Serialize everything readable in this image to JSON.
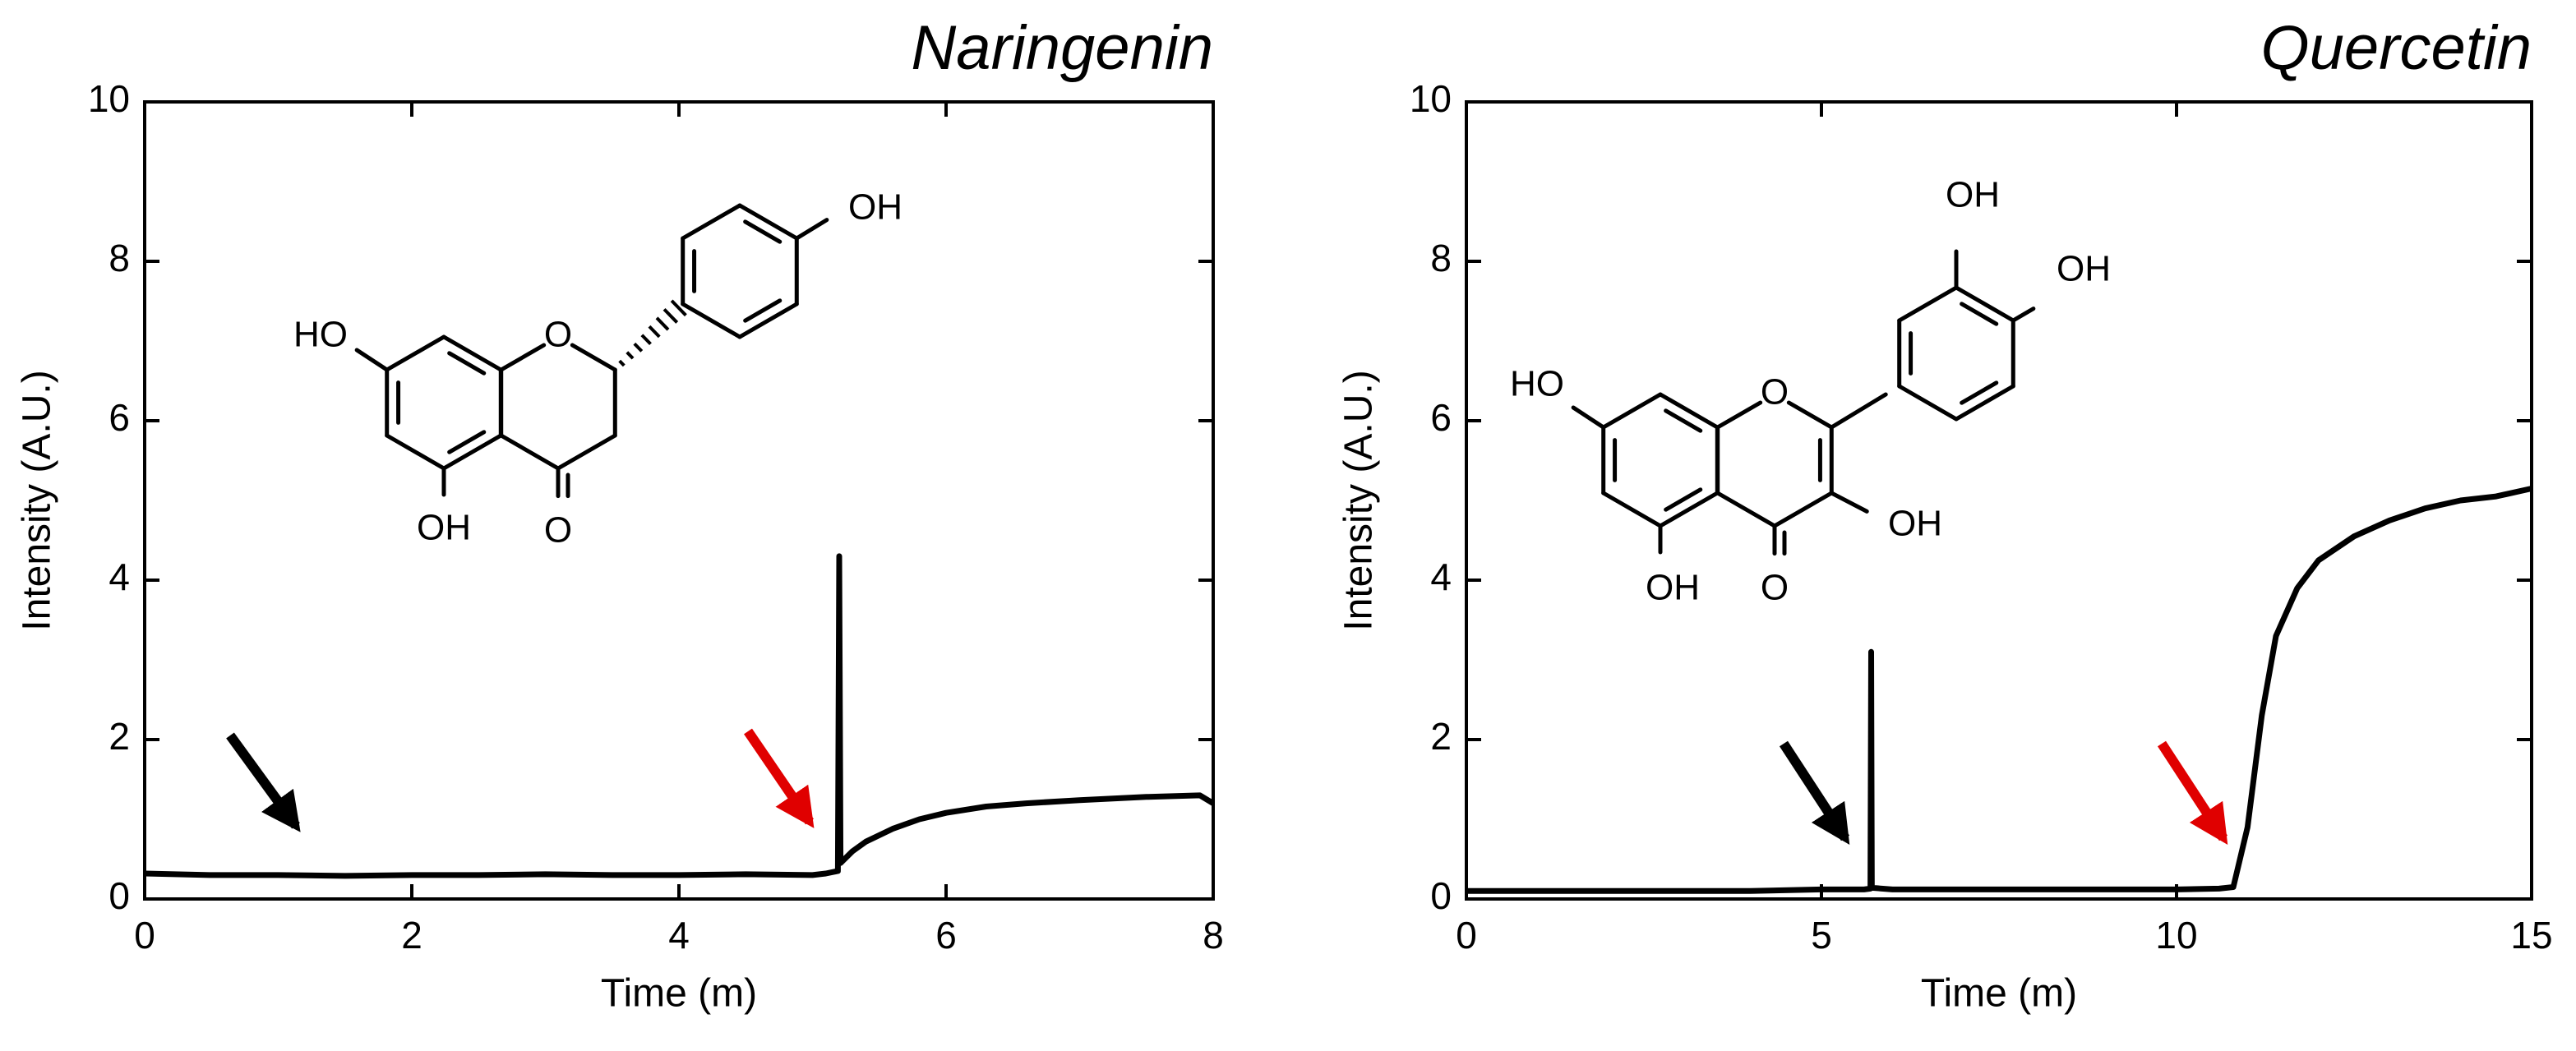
{
  "chart_data": [
    {
      "type": "line",
      "title": "Naringenin",
      "xlabel": "Time (m)",
      "ylabel": "Intensity (A.U.)",
      "x": [
        0,
        0.5,
        1,
        1.5,
        2,
        2.5,
        3,
        3.5,
        4,
        4.5,
        5.0,
        5.1,
        5.19,
        5.2,
        5.21,
        5.3,
        5.4,
        5.6,
        5.8,
        6,
        6.3,
        6.6,
        7,
        7.5,
        7.9,
        8
      ],
      "values": [
        0.32,
        0.3,
        0.3,
        0.29,
        0.3,
        0.3,
        0.31,
        0.3,
        0.3,
        0.31,
        0.3,
        0.32,
        0.35,
        4.3,
        0.45,
        0.6,
        0.72,
        0.88,
        1.0,
        1.08,
        1.16,
        1.2,
        1.24,
        1.28,
        1.3,
        1.2
      ],
      "color": "#000000",
      "xlim": [
        0,
        8
      ],
      "ylim": [
        0,
        10
      ],
      "xticks": [
        0,
        2,
        4,
        6,
        8
      ],
      "yticks": [
        0,
        2,
        4,
        6,
        8,
        10
      ],
      "structure_labels": [
        "HO",
        "O",
        "OH",
        "OH",
        "O"
      ]
    },
    {
      "type": "line",
      "title": "Quercetin",
      "xlabel": "Time (m)",
      "ylabel": "Intensity (A.U.)",
      "x": [
        0,
        1,
        2,
        3,
        4,
        5,
        5.6,
        5.69,
        5.7,
        5.71,
        6,
        7,
        8,
        9,
        10,
        10.6,
        10.8,
        11,
        11.2,
        11.4,
        11.7,
        12,
        12.5,
        13,
        13.5,
        14,
        14.5,
        15
      ],
      "values": [
        0.1,
        0.1,
        0.1,
        0.1,
        0.1,
        0.12,
        0.12,
        0.13,
        3.1,
        0.14,
        0.12,
        0.12,
        0.12,
        0.12,
        0.12,
        0.13,
        0.15,
        0.9,
        2.3,
        3.3,
        3.9,
        4.25,
        4.55,
        4.75,
        4.9,
        5.0,
        5.05,
        5.15
      ],
      "color": "#000000",
      "xlim": [
        0,
        15
      ],
      "ylim": [
        0,
        10
      ],
      "xticks": [
        0,
        5,
        10,
        15
      ],
      "yticks": [
        0,
        2,
        4,
        6,
        8,
        10
      ],
      "structure_labels": [
        "HO",
        "O",
        "OH",
        "OH",
        "O",
        "OH",
        "OH"
      ]
    }
  ]
}
